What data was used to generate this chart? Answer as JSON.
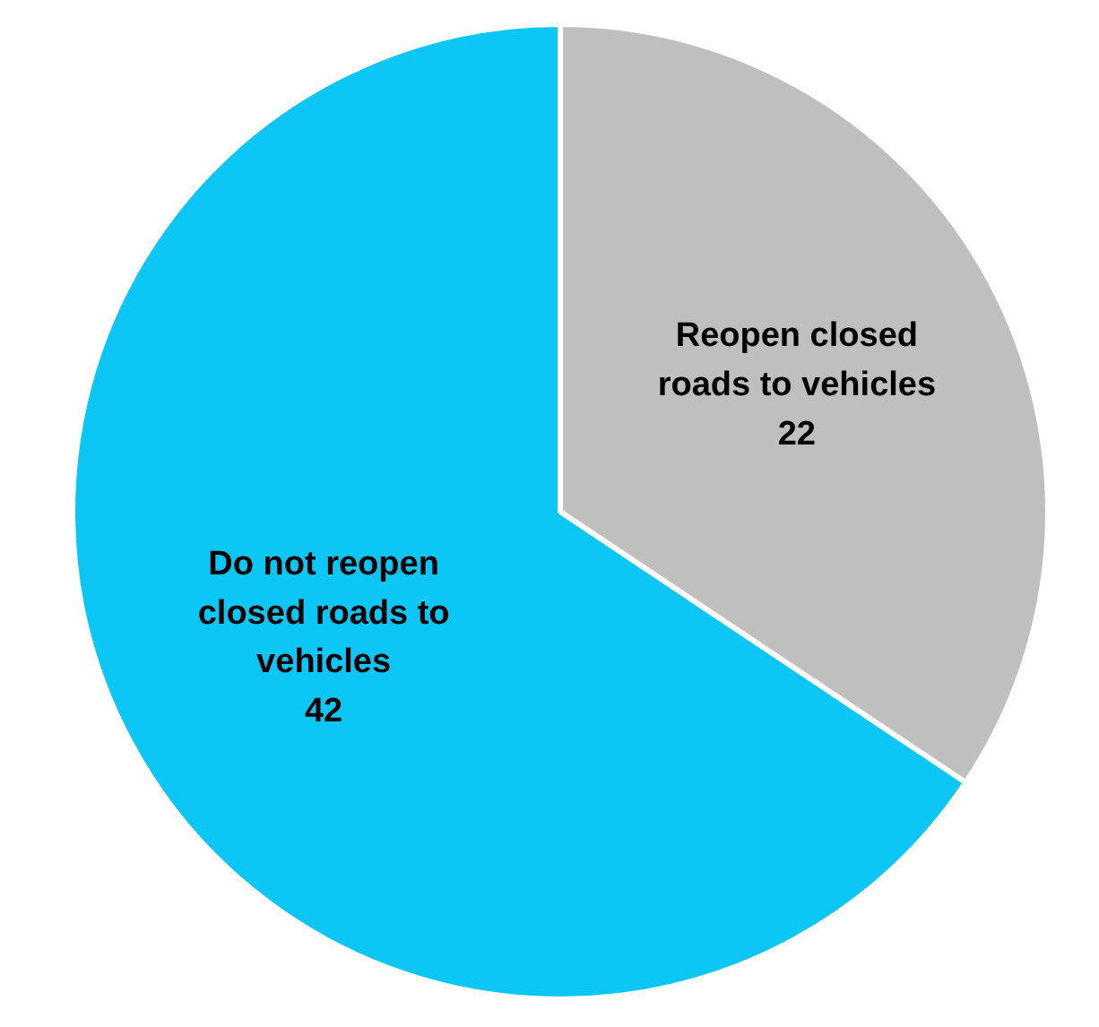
{
  "chart_data": {
    "type": "pie",
    "categories": [
      "Reopen closed roads to vehicles",
      "Do not reopen closed roads to vehicles"
    ],
    "values": [
      22,
      42
    ],
    "colors": [
      "#bfbfbf",
      "#0cc6f6"
    ],
    "data_labels": true
  }
}
